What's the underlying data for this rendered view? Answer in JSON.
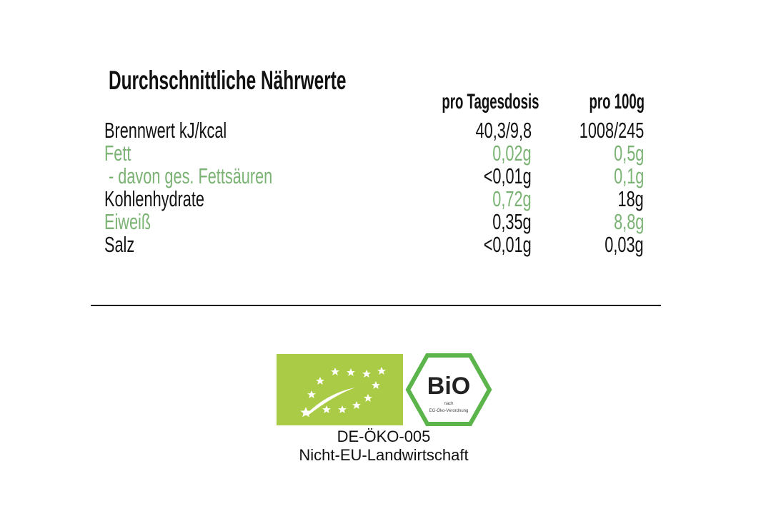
{
  "title": "Durchschnittliche Nährwerte",
  "columns": [
    "pro Tagesdosis",
    "pro 100g"
  ],
  "rows": [
    {
      "label": "Brennwert kJ/kcal",
      "daily": "40,3/9,8",
      "per100": "1008/245",
      "label_green": false,
      "daily_green": false,
      "per100_green": false
    },
    {
      "label": "Fett",
      "daily": "0,02g",
      "per100": "0,5g",
      "label_green": true,
      "daily_green": true,
      "per100_green": true
    },
    {
      "label": " - davon ges. Fettsäuren",
      "daily": "<0,01g",
      "per100": "0,1g",
      "label_green": true,
      "daily_green": false,
      "per100_green": true
    },
    {
      "label": "Kohlenhydrate",
      "daily": "0,72g",
      "per100": "18g",
      "label_green": false,
      "daily_green": true,
      "per100_green": false
    },
    {
      "label": "Eiweiß",
      "daily": "0,35g",
      "per100": "8,8g",
      "label_green": true,
      "daily_green": false,
      "per100_green": true
    },
    {
      "label": "Salz",
      "daily": "<0,01g",
      "per100": "0,03g",
      "label_green": false,
      "daily_green": false,
      "per100_green": false
    }
  ],
  "colors": {
    "green_text": "#7bb374",
    "eu_logo_green": "#aacb45",
    "bio_hex_green": "#5cb54a"
  },
  "logos": {
    "eu_organic": "eu-organic-leaf-logo",
    "bio": {
      "word": "BiO",
      "line1": "nach",
      "line2": "EG-Öko-Verordnung"
    }
  },
  "certification": {
    "code": "DE-ÖKO-005",
    "origin": "Nicht-EU-Landwirtschaft"
  }
}
